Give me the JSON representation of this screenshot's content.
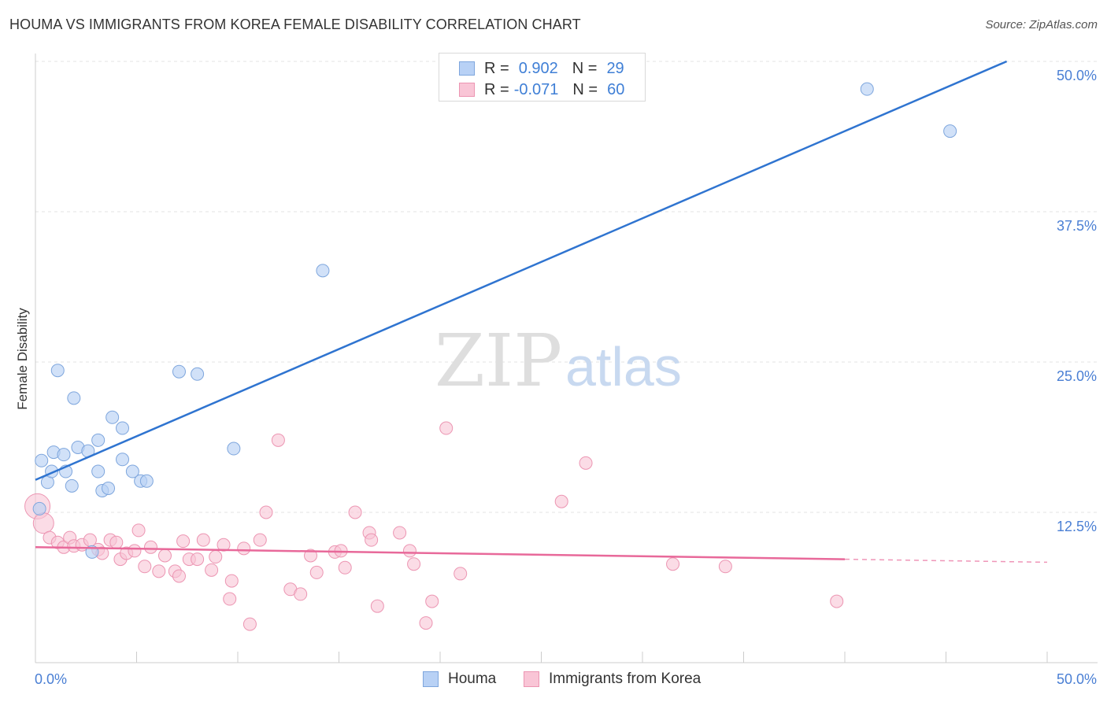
{
  "colors": {
    "houma_fill": "#b8d1f5",
    "houma_stroke": "#7ea6dd",
    "houma_line": "#2f74d0",
    "korea_fill": "#f9c5d6",
    "korea_stroke": "#ec95b2",
    "korea_line": "#e8699a",
    "tick_label": "#4a7fd4",
    "grid": "#e3e3e3"
  },
  "chart_data": {
    "type": "scatter",
    "title": "HOUMA VS IMMIGRANTS FROM KOREA FEMALE DISABILITY CORRELATION CHART",
    "source": "Source: ZipAtlas.com",
    "xlabel": "",
    "ylabel": "Female Disability",
    "xlim": [
      0,
      50
    ],
    "ylim": [
      0,
      50
    ],
    "x_tick_labels": [
      {
        "value": 0,
        "label": "0.0%"
      },
      {
        "value": 50,
        "label": "50.0%"
      }
    ],
    "y_tick_labels": [
      {
        "value": 12.5,
        "label": "12.5%"
      },
      {
        "value": 25,
        "label": "25.0%"
      },
      {
        "value": 37.5,
        "label": "37.5%"
      },
      {
        "value": 50,
        "label": "50.0%"
      }
    ],
    "grid": true,
    "watermark": {
      "part1": "ZIP",
      "part2": "atlas"
    },
    "stats": [
      {
        "r_label": "R =",
        "r_value": "0.902",
        "n_label": "N =",
        "n_value": "29"
      },
      {
        "r_label": "R =",
        "r_value": "-0.071",
        "n_label": "N =",
        "n_value": "60"
      }
    ],
    "series": [
      {
        "name": "Houma",
        "trend": {
          "x0": 0,
          "y0": 15.2,
          "x1": 48.0,
          "y1": 50.0,
          "dashed_to": null
        },
        "points": [
          [
            0.2,
            12.8
          ],
          [
            0.3,
            16.8
          ],
          [
            0.6,
            15.0
          ],
          [
            0.8,
            15.9
          ],
          [
            0.9,
            17.5
          ],
          [
            1.1,
            24.3
          ],
          [
            1.4,
            17.3
          ],
          [
            1.5,
            15.9
          ],
          [
            1.8,
            14.7
          ],
          [
            1.9,
            22.0
          ],
          [
            2.1,
            17.9
          ],
          [
            2.6,
            17.6
          ],
          [
            2.8,
            9.2
          ],
          [
            3.1,
            18.5
          ],
          [
            3.1,
            15.9
          ],
          [
            3.3,
            14.3
          ],
          [
            3.6,
            14.5
          ],
          [
            3.8,
            20.4
          ],
          [
            4.3,
            19.5
          ],
          [
            4.3,
            16.9
          ],
          [
            4.8,
            15.9
          ],
          [
            5.2,
            15.1
          ],
          [
            5.5,
            15.1
          ],
          [
            7.1,
            24.2
          ],
          [
            8.0,
            24.0
          ],
          [
            9.8,
            17.8
          ],
          [
            14.2,
            32.6
          ],
          [
            41.1,
            47.7
          ],
          [
            45.2,
            44.2
          ]
        ]
      },
      {
        "name": "Immigrants from Korea",
        "trend": {
          "x0": 0,
          "y0": 9.6,
          "x1": 40.0,
          "y1": 8.6,
          "dashed_to": {
            "x": 50,
            "y": 8.35
          }
        },
        "points": [
          [
            0.1,
            13.0
          ],
          [
            0.4,
            11.6
          ],
          [
            0.7,
            10.4
          ],
          [
            1.1,
            10.0
          ],
          [
            1.4,
            9.6
          ],
          [
            1.7,
            10.4
          ],
          [
            1.9,
            9.7
          ],
          [
            2.3,
            9.8
          ],
          [
            2.7,
            10.2
          ],
          [
            3.1,
            9.4
          ],
          [
            3.3,
            9.1
          ],
          [
            3.7,
            10.2
          ],
          [
            4.0,
            10.0
          ],
          [
            4.2,
            8.6
          ],
          [
            4.5,
            9.1
          ],
          [
            4.9,
            9.3
          ],
          [
            5.1,
            11.0
          ],
          [
            5.4,
            8.0
          ],
          [
            5.7,
            9.6
          ],
          [
            6.1,
            7.6
          ],
          [
            6.4,
            8.9
          ],
          [
            6.9,
            7.6
          ],
          [
            7.1,
            7.2
          ],
          [
            7.3,
            10.1
          ],
          [
            7.6,
            8.6
          ],
          [
            8.0,
            8.6
          ],
          [
            8.3,
            10.2
          ],
          [
            8.7,
            7.7
          ],
          [
            8.9,
            8.8
          ],
          [
            9.3,
            9.8
          ],
          [
            9.6,
            5.3
          ],
          [
            9.7,
            6.8
          ],
          [
            10.3,
            9.5
          ],
          [
            10.6,
            3.2
          ],
          [
            11.1,
            10.2
          ],
          [
            11.4,
            12.5
          ],
          [
            12.0,
            18.5
          ],
          [
            12.6,
            6.1
          ],
          [
            13.1,
            5.7
          ],
          [
            13.6,
            8.9
          ],
          [
            13.9,
            7.5
          ],
          [
            14.8,
            9.2
          ],
          [
            15.1,
            9.3
          ],
          [
            15.3,
            7.9
          ],
          [
            15.8,
            12.5
          ],
          [
            16.5,
            10.8
          ],
          [
            16.6,
            10.2
          ],
          [
            16.9,
            4.7
          ],
          [
            18.0,
            10.8
          ],
          [
            18.5,
            9.3
          ],
          [
            18.7,
            8.2
          ],
          [
            19.3,
            3.3
          ],
          [
            19.6,
            5.1
          ],
          [
            20.3,
            19.5
          ],
          [
            21.0,
            7.4
          ],
          [
            26.0,
            13.4
          ],
          [
            27.2,
            16.6
          ],
          [
            31.5,
            8.2
          ],
          [
            34.1,
            8.0
          ],
          [
            39.6,
            5.1
          ]
        ]
      }
    ]
  },
  "legend": {
    "items": [
      {
        "label": "Houma"
      },
      {
        "label": "Immigrants from Korea"
      }
    ]
  }
}
